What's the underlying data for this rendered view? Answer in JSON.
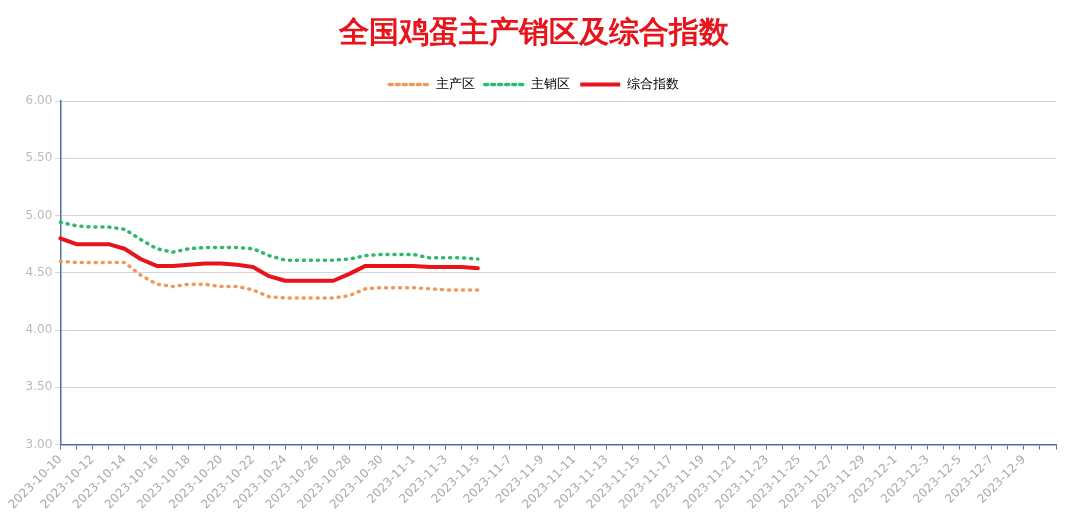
{
  "chart_data": {
    "type": "line",
    "title": "全国鸡蛋主产销区及综合指数",
    "categories": [
      "2023-10-10",
      null,
      "2023-10-12",
      null,
      "2023-10-14",
      null,
      "2023-10-16",
      null,
      "2023-10-18",
      null,
      "2023-10-20",
      null,
      "2023-10-22",
      null,
      "2023-10-24",
      null,
      "2023-10-26",
      null,
      "2023-10-28",
      null,
      "2023-10-30",
      null,
      "2023-11-1",
      null,
      "2023-11-3",
      null,
      "2023-11-5",
      null,
      "2023-11-7",
      null,
      "2023-11-9",
      null,
      "2023-11-11",
      null,
      "2023-11-13",
      null,
      "2023-11-15",
      null,
      "2023-11-17",
      null,
      "2023-11-19",
      null,
      "2023-11-21",
      null,
      "2023-11-23",
      null,
      "2023-11-25",
      null,
      "2023-11-27",
      null,
      "2023-11-29",
      null,
      "2023-12-1",
      null,
      "2023-12-3",
      null,
      "2023-12-5",
      null,
      "2023-12-7",
      null,
      "2023-12-9",
      null,
      null
    ],
    "series": [
      {
        "name": "主产区",
        "color": "#ee9a5c",
        "line_style": "dotted",
        "values": [
          4.6,
          4.59,
          4.59,
          4.59,
          4.59,
          4.48,
          4.4,
          4.38,
          4.4,
          4.4,
          4.38,
          4.38,
          4.35,
          4.29,
          4.28,
          4.28,
          4.28,
          4.28,
          4.3,
          4.36,
          4.37,
          4.37,
          4.37,
          4.36,
          4.35,
          4.35,
          4.35,
          null,
          null,
          null,
          null,
          null,
          null,
          null,
          null,
          null,
          null,
          null,
          null,
          null,
          null,
          null,
          null,
          null,
          null,
          null,
          null,
          null,
          null,
          null,
          null,
          null,
          null,
          null,
          null,
          null,
          null,
          null,
          null,
          null,
          null,
          null,
          null
        ]
      },
      {
        "name": "主销区",
        "color": "#2eb872",
        "line_style": "dotted",
        "values": [
          4.94,
          4.91,
          4.9,
          4.9,
          4.88,
          4.79,
          4.71,
          4.68,
          4.71,
          4.72,
          4.72,
          4.72,
          4.71,
          4.65,
          4.61,
          4.61,
          4.61,
          4.61,
          4.62,
          4.65,
          4.66,
          4.66,
          4.66,
          4.63,
          4.63,
          4.63,
          4.62,
          null,
          null,
          null,
          null,
          null,
          null,
          null,
          null,
          null,
          null,
          null,
          null,
          null,
          null,
          null,
          null,
          null,
          null,
          null,
          null,
          null,
          null,
          null,
          null,
          null,
          null,
          null,
          null,
          null,
          null,
          null,
          null,
          null,
          null,
          null,
          null
        ]
      },
      {
        "name": "综合指数",
        "color": "#e8141b",
        "line_style": "solid",
        "values": [
          4.8,
          4.75,
          4.75,
          4.75,
          4.71,
          4.62,
          4.56,
          4.56,
          4.57,
          4.58,
          4.58,
          4.57,
          4.55,
          4.47,
          4.43,
          4.43,
          4.43,
          4.43,
          4.49,
          4.56,
          4.56,
          4.56,
          4.56,
          4.55,
          4.55,
          4.55,
          4.54,
          null,
          null,
          null,
          null,
          null,
          null,
          null,
          null,
          null,
          null,
          null,
          null,
          null,
          null,
          null,
          null,
          null,
          null,
          null,
          null,
          null,
          null,
          null,
          null,
          null,
          null,
          null,
          null,
          null,
          null,
          null,
          null,
          null,
          null,
          null,
          null
        ]
      }
    ],
    "ylim": [
      3,
      6
    ],
    "yticks": [
      {
        "value": 3,
        "label": "3.00"
      },
      {
        "value": 3.5,
        "label": "3.50"
      },
      {
        "value": 4,
        "label": "4.00"
      },
      {
        "value": 4.5,
        "label": "4.50"
      },
      {
        "value": 5,
        "label": "5.00"
      },
      {
        "value": 5.5,
        "label": "5.50"
      },
      {
        "value": 6,
        "label": "6.00"
      }
    ],
    "grid": "y",
    "legend": "top",
    "marker": "none"
  }
}
